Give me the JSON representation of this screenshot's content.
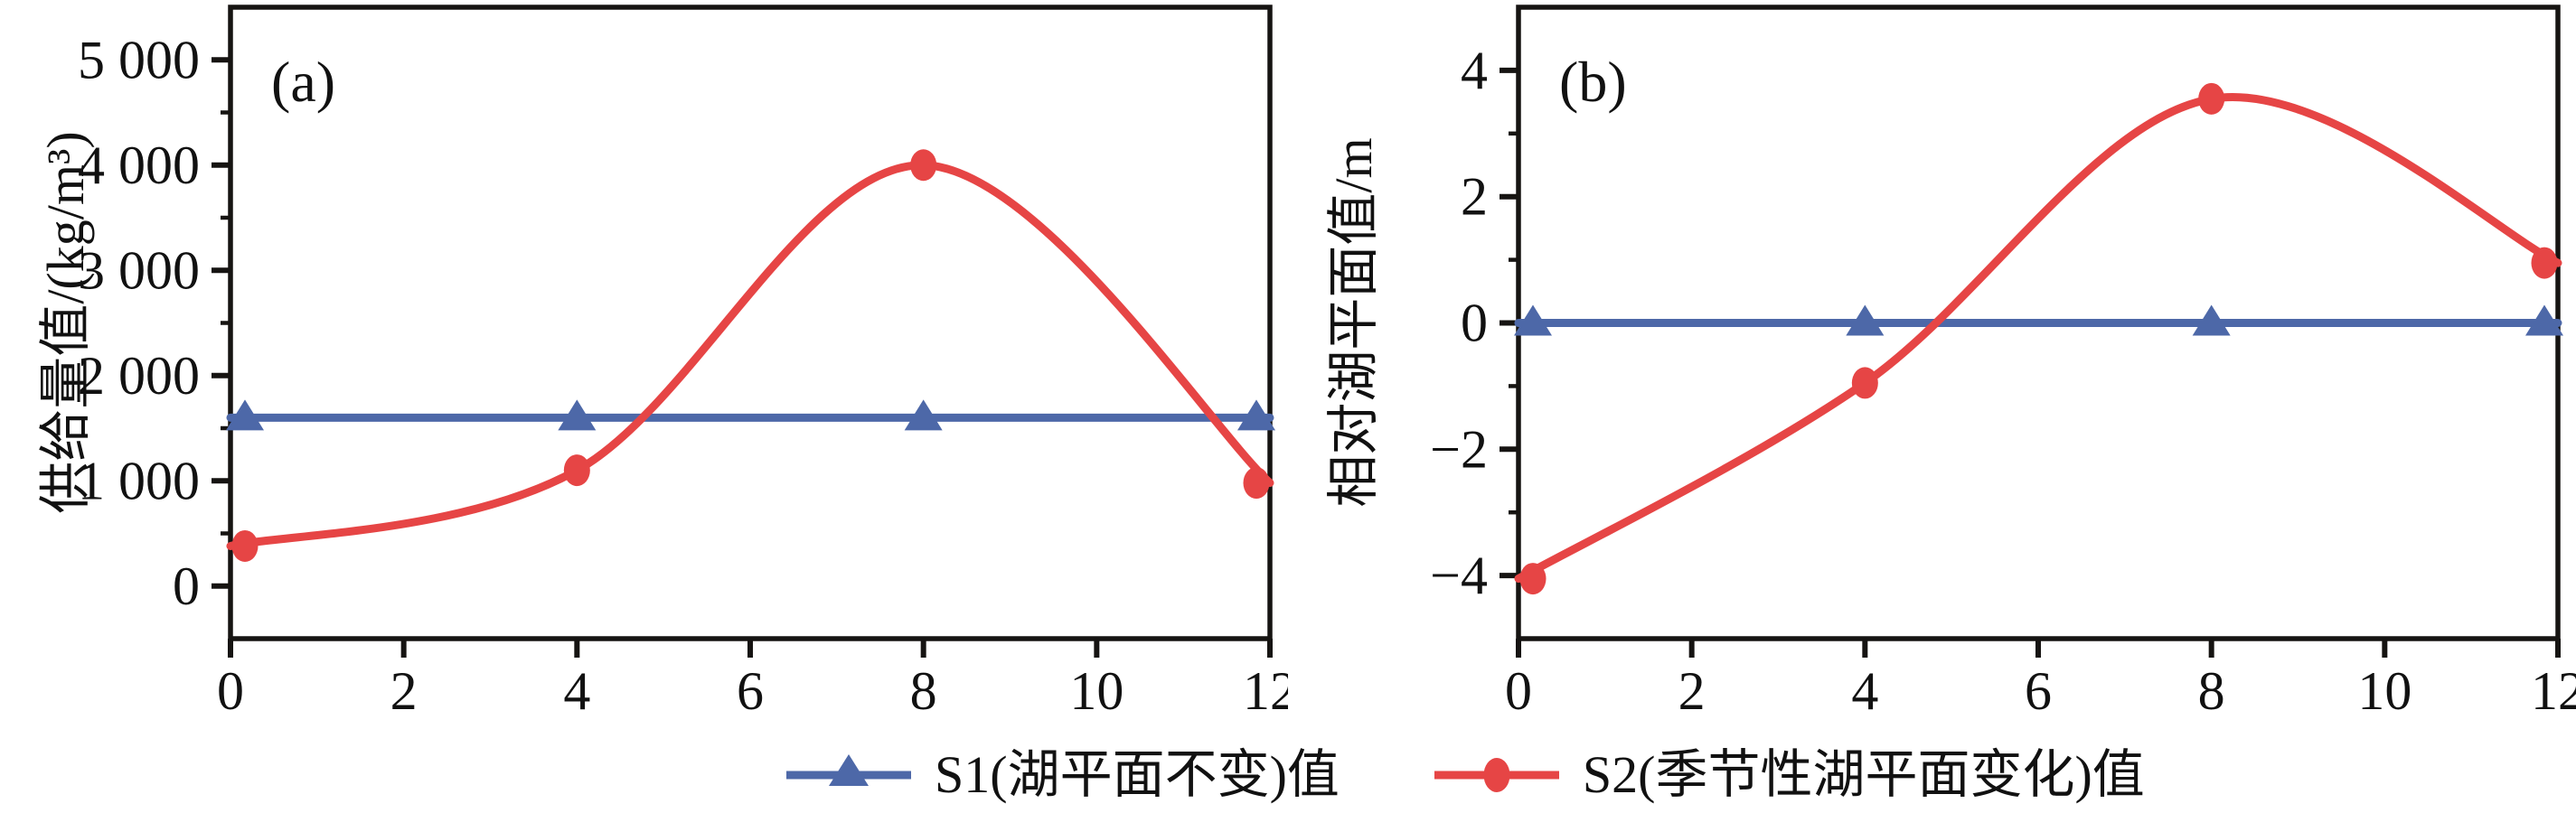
{
  "chart_data": [
    {
      "type": "line",
      "panel_label": "(a)",
      "title": "",
      "xlabel": "",
      "ylabel": "供给量值/(kg/m³)",
      "x": [
        0,
        4,
        8,
        12
      ],
      "series": [
        {
          "name": "S1(湖平面不变)值",
          "values": [
            1600,
            1600,
            1600,
            1600
          ],
          "color": "#4d68a8",
          "marker": "triangle"
        },
        {
          "name": "S2(季节性湖平面变化)值",
          "values": [
            380,
            1100,
            4000,
            980
          ],
          "color": "#e64545",
          "marker": "circle"
        }
      ],
      "xlim": [
        0,
        12
      ],
      "ylim": [
        -500,
        5500
      ],
      "xtick_values": [
        0,
        2,
        4,
        6,
        8,
        10,
        12
      ],
      "xtick_labels": [
        "0",
        "2",
        "4",
        "6",
        "8",
        "10",
        "12"
      ],
      "ytick_values": [
        0,
        1000,
        2000,
        3000,
        4000,
        5000
      ],
      "ytick_labels": [
        "0",
        "1 000",
        "2 000",
        "3 000",
        "4 000",
        "5 000"
      ],
      "y_minor_step": 500,
      "grid": false,
      "legend_position": "bottom-shared"
    },
    {
      "type": "line",
      "panel_label": "(b)",
      "title": "",
      "xlabel": "",
      "ylabel": "相对湖平面值/m",
      "x": [
        0,
        4,
        8,
        12
      ],
      "series": [
        {
          "name": "S1(湖平面不变)值",
          "values": [
            0,
            0,
            0,
            0
          ],
          "color": "#4d68a8",
          "marker": "triangle"
        },
        {
          "name": "S2(季节性湖平面变化)值",
          "values": [
            -4.05,
            -0.95,
            3.55,
            0.95
          ],
          "color": "#e64545",
          "marker": "circle"
        }
      ],
      "xlim": [
        0,
        12
      ],
      "ylim": [
        -5,
        5
      ],
      "xtick_values": [
        0,
        2,
        4,
        6,
        8,
        10,
        12
      ],
      "xtick_labels": [
        "0",
        "2",
        "4",
        "6",
        "8",
        "10",
        "12"
      ],
      "ytick_values": [
        -4,
        -2,
        0,
        2,
        4
      ],
      "ytick_labels": [
        "−4",
        "−2",
        "0",
        "2",
        "4"
      ],
      "y_minor_step": 1,
      "grid": false,
      "legend_position": "bottom-shared"
    }
  ],
  "legend": {
    "items": [
      {
        "label": "S1(湖平面不变)值",
        "color": "#4d68a8",
        "marker": "triangle"
      },
      {
        "label": "S2(季节性湖平面变化)值",
        "color": "#e64545",
        "marker": "circle"
      }
    ]
  },
  "colors": {
    "series_s1": "#4d68a8",
    "series_s2": "#e64545",
    "axis": "#161412",
    "background": "#ffffff"
  }
}
